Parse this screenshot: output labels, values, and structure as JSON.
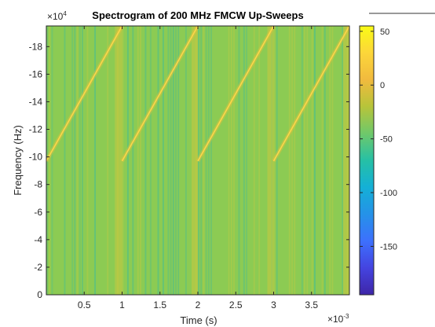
{
  "chart_data": {
    "type": "heatmap",
    "title": "Spectrogram of 200 MHz FMCW Up-Sweeps",
    "xlabel": "Time (s)",
    "ylabel": "Frequency (Hz)",
    "x_exponent_label": "×10",
    "x_exponent": "-3",
    "y_exponent_label": "×10",
    "y_exponent": "4",
    "xlim": [
      0,
      0.004
    ],
    "ylim": [
      0,
      -195000
    ],
    "x_ticks": [
      0.0005,
      0.001,
      0.0015,
      0.002,
      0.0025,
      0.003,
      0.0035
    ],
    "x_tick_labels": [
      "0.5",
      "1",
      "1.5",
      "2",
      "2.5",
      "3",
      "3.5"
    ],
    "y_ticks": [
      0,
      -20000,
      -40000,
      -60000,
      -80000,
      -100000,
      -120000,
      -140000,
      -160000,
      -180000
    ],
    "y_tick_labels": [
      "0",
      "-2",
      "-4",
      "-6",
      "-8",
      "-10",
      "-12",
      "-14",
      "-16",
      "-18"
    ],
    "sweeps": [
      {
        "t_start": 0.0,
        "t_end": 0.001,
        "f_start": -97000,
        "f_end": -195000
      },
      {
        "t_start": 0.001,
        "t_end": 0.002,
        "f_start": -97000,
        "f_end": -195000
      },
      {
        "t_start": 0.002,
        "t_end": 0.003,
        "f_start": -97000,
        "f_end": -195000
      },
      {
        "t_start": 0.003,
        "t_end": 0.004,
        "f_start": -97000,
        "f_end": -195000
      }
    ],
    "background_power_db": -25,
    "sweep_power_db": 45,
    "colorbar": {
      "limits": [
        -195,
        55
      ],
      "ticks": [
        50,
        0,
        -50,
        -100,
        -150
      ],
      "tick_labels": [
        "50",
        "0",
        "-50",
        "-100",
        "-150"
      ],
      "colormap": "parula"
    },
    "colors": {
      "background_cell": "#8ccb53",
      "stripe_dark": "#4fbf8a",
      "stripe_light": "#b5cc45",
      "sweep_line": "#fdd64a",
      "sweep_glow": "#e7c23a"
    }
  }
}
